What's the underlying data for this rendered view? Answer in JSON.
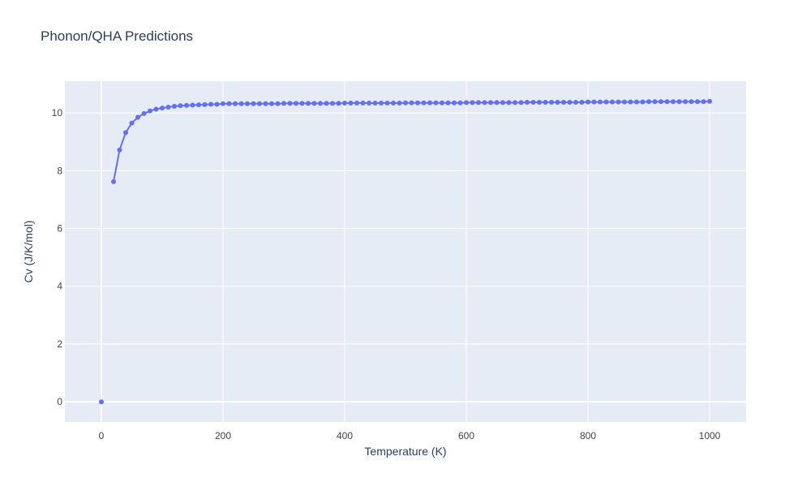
{
  "chart_data": {
    "type": "line",
    "title": "Phonon/QHA Predictions",
    "x_label": "Temperature (K)",
    "y_label": "Cv (J/K/mol)",
    "x": [
      0,
      10,
      20,
      30,
      40,
      50,
      60,
      70,
      80,
      90,
      100,
      110,
      120,
      130,
      140,
      150,
      160,
      170,
      180,
      190,
      200,
      210,
      220,
      230,
      240,
      250,
      260,
      270,
      280,
      290,
      300,
      310,
      320,
      330,
      340,
      350,
      360,
      370,
      380,
      390,
      400,
      410,
      420,
      430,
      440,
      450,
      460,
      470,
      480,
      490,
      500,
      510,
      520,
      530,
      540,
      550,
      560,
      570,
      580,
      590,
      600,
      610,
      620,
      630,
      640,
      650,
      660,
      670,
      680,
      690,
      700,
      710,
      720,
      730,
      740,
      750,
      760,
      770,
      780,
      790,
      800,
      810,
      820,
      830,
      840,
      850,
      860,
      870,
      880,
      890,
      900,
      910,
      920,
      930,
      940,
      950,
      960,
      970,
      980,
      990,
      1000
    ],
    "series": [
      {
        "color": "#636efa",
        "values": [
          0,
          null,
          7.62,
          8.72,
          9.32,
          9.65,
          9.85,
          9.98,
          10.07,
          10.13,
          10.17,
          10.2,
          10.23,
          10.25,
          10.26,
          10.27,
          10.28,
          10.29,
          10.3,
          10.3,
          10.32,
          10.32,
          10.32,
          10.32,
          10.32,
          10.32,
          10.32,
          10.32,
          10.32,
          10.32,
          10.33,
          10.33,
          10.33,
          10.33,
          10.33,
          10.33,
          10.33,
          10.33,
          10.33,
          10.33,
          10.34,
          10.34,
          10.34,
          10.34,
          10.34,
          10.34,
          10.34,
          10.34,
          10.34,
          10.34,
          10.35,
          10.35,
          10.35,
          10.35,
          10.35,
          10.35,
          10.35,
          10.35,
          10.35,
          10.35,
          10.36,
          10.36,
          10.36,
          10.36,
          10.36,
          10.36,
          10.36,
          10.36,
          10.36,
          10.36,
          10.37,
          10.37,
          10.37,
          10.37,
          10.37,
          10.37,
          10.37,
          10.37,
          10.37,
          10.37,
          10.38,
          10.38,
          10.38,
          10.38,
          10.38,
          10.38,
          10.38,
          10.38,
          10.38,
          10.38,
          10.39,
          10.39,
          10.39,
          10.39,
          10.39,
          10.39,
          10.39,
          10.39,
          10.39,
          10.39,
          10.4
        ]
      }
    ],
    "xlim": [
      -60,
      1060
    ],
    "ylim": [
      -0.7,
      11.1
    ],
    "xticks": [
      0,
      200,
      400,
      600,
      800,
      1000
    ],
    "yticks": [
      0,
      2,
      4,
      6,
      8,
      10
    ],
    "grid": true
  }
}
